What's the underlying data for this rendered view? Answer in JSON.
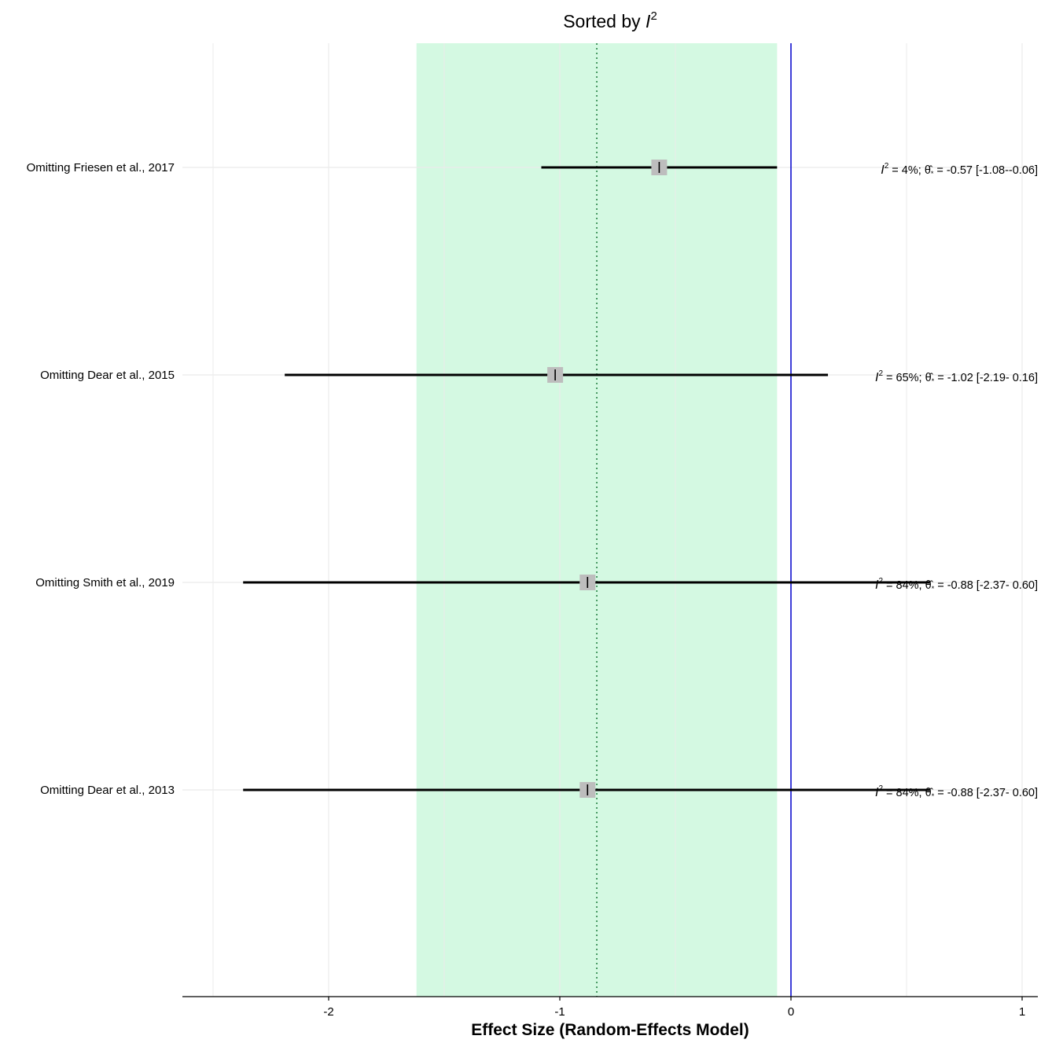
{
  "chart_data": {
    "type": "forest",
    "title": "Sorted by ",
    "title_symbol": "I",
    "title_sup": "2",
    "xlabel": "Effect Size (Random-Effects Model)",
    "xlim": [
      -2.5,
      1.0
    ],
    "xticks": [
      -2,
      -1,
      0,
      1
    ],
    "xtick_labels": [
      "-2",
      "-1",
      "0",
      "1"
    ],
    "minor_gridlines": [
      -2.5,
      -1.5,
      -0.5,
      0.5
    ],
    "pooled_effect": -0.84,
    "pooled_ci": [
      -1.62,
      -0.06
    ],
    "null_line": 0,
    "grid": true,
    "colors": {
      "ci_band": "#d4f9e2",
      "null_line": "#0000cc",
      "pooled_line": "#1a7a3a",
      "ci_whisker": "#000000",
      "point_box": "#bdbdbd",
      "gridline": "#ebebeb"
    },
    "studies": [
      {
        "label": "Omitting Friesen et al., 2017",
        "i2": " 4%",
        "estimate": -0.57,
        "lower": -1.08,
        "upper": -0.06,
        "annotation": "= -0.57 [-1.08--0.06]"
      },
      {
        "label": "Omitting Dear et al., 2015",
        "i2": "65%",
        "estimate": -1.02,
        "lower": -2.19,
        "upper": 0.16,
        "annotation": "= -1.02 [-2.19- 0.16]"
      },
      {
        "label": "Omitting Smith et al., 2019",
        "i2": "84%",
        "estimate": -0.88,
        "lower": -2.37,
        "upper": 0.6,
        "annotation": "= -0.88 [-2.37- 0.60]"
      },
      {
        "label": "Omitting Dear et al., 2013",
        "i2": "84%",
        "estimate": -0.88,
        "lower": -2.37,
        "upper": 0.6,
        "annotation": "= -0.88 [-2.37- 0.60]"
      }
    ]
  }
}
